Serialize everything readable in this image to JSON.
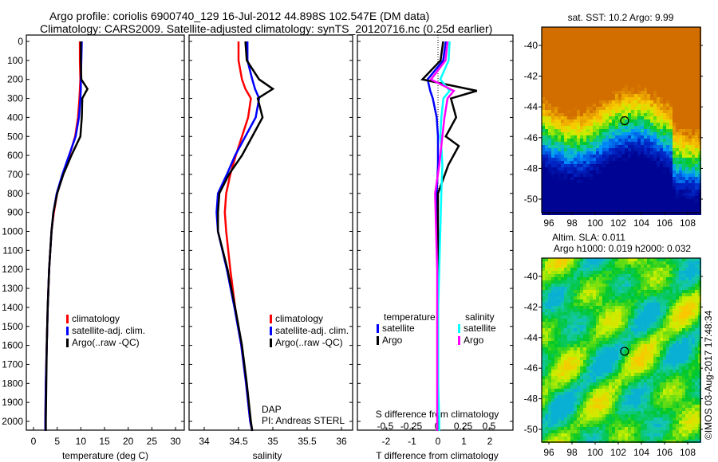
{
  "title_line1": "Argo profile: coriolis 6900740_129 16-Jul-2012 44.898S 102.547E (DM data)",
  "title_line2": "Climatology: CARS2009. Satellite-adjusted climatology: synTS_20120716.nc (0.25d earlier)",
  "colors": {
    "climatology": "#ff0000",
    "satellite": "#0000ff",
    "argo": "#000000",
    "s_satellite": "#00ffff",
    "s_argo": "#ff00ff"
  },
  "chart_data": [
    {
      "type": "line",
      "xlabel": "temperature (deg C)",
      "ylabel": "",
      "xlim": [
        -1,
        31
      ],
      "ylim": [
        2050,
        0
      ],
      "xticks": [
        "0",
        "5",
        "10",
        "15",
        "20",
        "25",
        "30"
      ],
      "yticks": [
        "0",
        "100",
        "200",
        "300",
        "400",
        "500",
        "600",
        "700",
        "800",
        "900",
        "1000",
        "1100",
        "1200",
        "1300",
        "1400",
        "1500",
        "1600",
        "1700",
        "1800",
        "1900",
        "2000"
      ],
      "legend": [
        "climatology",
        "satellite-adj. clim.",
        "Argo(..raw -QC)"
      ],
      "depth": [
        0,
        100,
        200,
        250,
        300,
        400,
        500,
        600,
        700,
        800,
        900,
        1000,
        1200,
        1400,
        1600,
        1800,
        2000,
        2050
      ],
      "series": [
        {
          "name": "climatology",
          "values": [
            9.8,
            9.8,
            9.9,
            9.8,
            9.7,
            9.4,
            8.8,
            7.6,
            6.2,
            5.0,
            4.3,
            3.8,
            3.3,
            3.0,
            2.8,
            2.6,
            2.5,
            2.5
          ]
        },
        {
          "name": "satellite-adj. clim.",
          "values": [
            10.2,
            10.1,
            10.0,
            10.0,
            9.9,
            9.6,
            8.9,
            7.5,
            6.1,
            4.9,
            4.2,
            3.8,
            3.3,
            3.0,
            2.8,
            2.6,
            2.5,
            2.5
          ]
        },
        {
          "name": "Argo(..raw -QC)",
          "values": [
            10.0,
            10.0,
            10.1,
            11.4,
            10.3,
            10.2,
            9.9,
            8.0,
            6.3,
            5.0,
            4.2,
            3.8,
            3.3,
            3.0,
            2.8,
            2.7,
            2.6,
            2.6
          ]
        }
      ]
    },
    {
      "type": "line",
      "xlabel": "salinity",
      "xlim": [
        33.9,
        36.05
      ],
      "ylim": [
        2050,
        0
      ],
      "xticks": [
        "34",
        "34.5",
        "35",
        "35.5",
        "36"
      ],
      "legend": [
        "climatology",
        "satellite-adj. clim.",
        "Argo(..raw -QC)"
      ],
      "annotation": [
        "DAP",
        "PI: Andreas STERL"
      ],
      "depth": [
        0,
        100,
        200,
        250,
        300,
        400,
        500,
        600,
        700,
        800,
        900,
        1000,
        1200,
        1400,
        1600,
        1800,
        2000,
        2050
      ],
      "series": [
        {
          "name": "climatology",
          "values": [
            34.5,
            34.5,
            34.55,
            34.6,
            34.68,
            34.64,
            34.55,
            34.46,
            34.38,
            34.32,
            34.3,
            34.32,
            34.38,
            34.45,
            34.54,
            34.61,
            34.67,
            34.7
          ]
        },
        {
          "name": "satellite-adj. clim.",
          "values": [
            34.63,
            34.63,
            34.7,
            34.74,
            34.8,
            34.75,
            34.6,
            34.45,
            34.33,
            34.2,
            34.18,
            34.2,
            34.33,
            34.44,
            34.54,
            34.61,
            34.67,
            34.7
          ]
        },
        {
          "name": "Argo(..raw -QC)",
          "values": [
            34.6,
            34.62,
            34.8,
            35.0,
            34.78,
            34.85,
            34.7,
            34.55,
            34.36,
            34.22,
            34.2,
            34.2,
            34.34,
            34.45,
            34.55,
            34.62,
            34.68,
            34.7
          ]
        }
      ]
    },
    {
      "type": "line",
      "xlabel": "T difference from climatology",
      "x2label": "S difference from climatology",
      "xlim": [
        -3,
        3
      ],
      "x2lim": [
        -0.75,
        0.75
      ],
      "ylim": [
        2050,
        0
      ],
      "xticks": [
        "-2",
        "-1",
        "0",
        "1",
        "2"
      ],
      "x2ticks": [
        "-0.5",
        "-0.25",
        "0",
        "0.25",
        "0.5"
      ],
      "legend_titles": [
        "temperature",
        "salinity"
      ],
      "legend": [
        "satellite",
        "Argo",
        "satellite",
        "Argo"
      ],
      "depth": [
        0,
        100,
        200,
        260,
        300,
        400,
        500,
        550,
        650,
        800,
        1000,
        1200,
        1400,
        1600,
        1800,
        2000,
        2050
      ],
      "series": [
        {
          "name": "T satellite",
          "axis": "T",
          "values": [
            0.3,
            0.2,
            -0.4,
            -0.3,
            -0.2,
            -0.05,
            0,
            0,
            0,
            -0.05,
            0,
            0,
            0,
            0,
            0,
            0,
            0
          ]
        },
        {
          "name": "T Argo",
          "axis": "T",
          "values": [
            0.2,
            0.1,
            -0.6,
            1.5,
            0.5,
            0.7,
            0.3,
            0.8,
            0.4,
            0,
            0,
            0,
            0,
            0,
            0,
            0,
            0
          ]
        },
        {
          "name": "S satellite",
          "axis": "S",
          "values": [
            0.12,
            0.11,
            0.03,
            0.12,
            0.06,
            0.04,
            0.03,
            0.04,
            0.05,
            0.04,
            0.03,
            0.02,
            0.01,
            0.01,
            0.01,
            0.02,
            0.02
          ]
        },
        {
          "name": "S Argo",
          "axis": "S",
          "values": [
            0.1,
            0.08,
            -0.06,
            0.16,
            0.1,
            0.07,
            0.05,
            0.04,
            0.02,
            -0.02,
            -0.01,
            0,
            0,
            0,
            0,
            0,
            0
          ]
        }
      ]
    },
    {
      "type": "heatmap",
      "title": "sat. SST: 10.2 Argo: 9.99",
      "xticks": [
        "96",
        "98",
        "100",
        "102",
        "104",
        "106",
        "108"
      ],
      "yticks": [
        "-40",
        "-42",
        "-44",
        "-46",
        "-48",
        "-50"
      ],
      "marker": [
        102.547,
        -44.898
      ]
    },
    {
      "type": "heatmap",
      "title1": "Altim. SLA: 0.011",
      "title2": "Argo h1000: 0.019 h2000: 0.032",
      "xticks": [
        "96",
        "98",
        "100",
        "102",
        "104",
        "106",
        "108"
      ],
      "yticks": [
        "-40",
        "-42",
        "-44",
        "-46",
        "-48",
        "-50"
      ],
      "marker": [
        102.547,
        -44.898
      ]
    }
  ],
  "footer": "©IMOS 03-Aug-2017 17:48:34"
}
